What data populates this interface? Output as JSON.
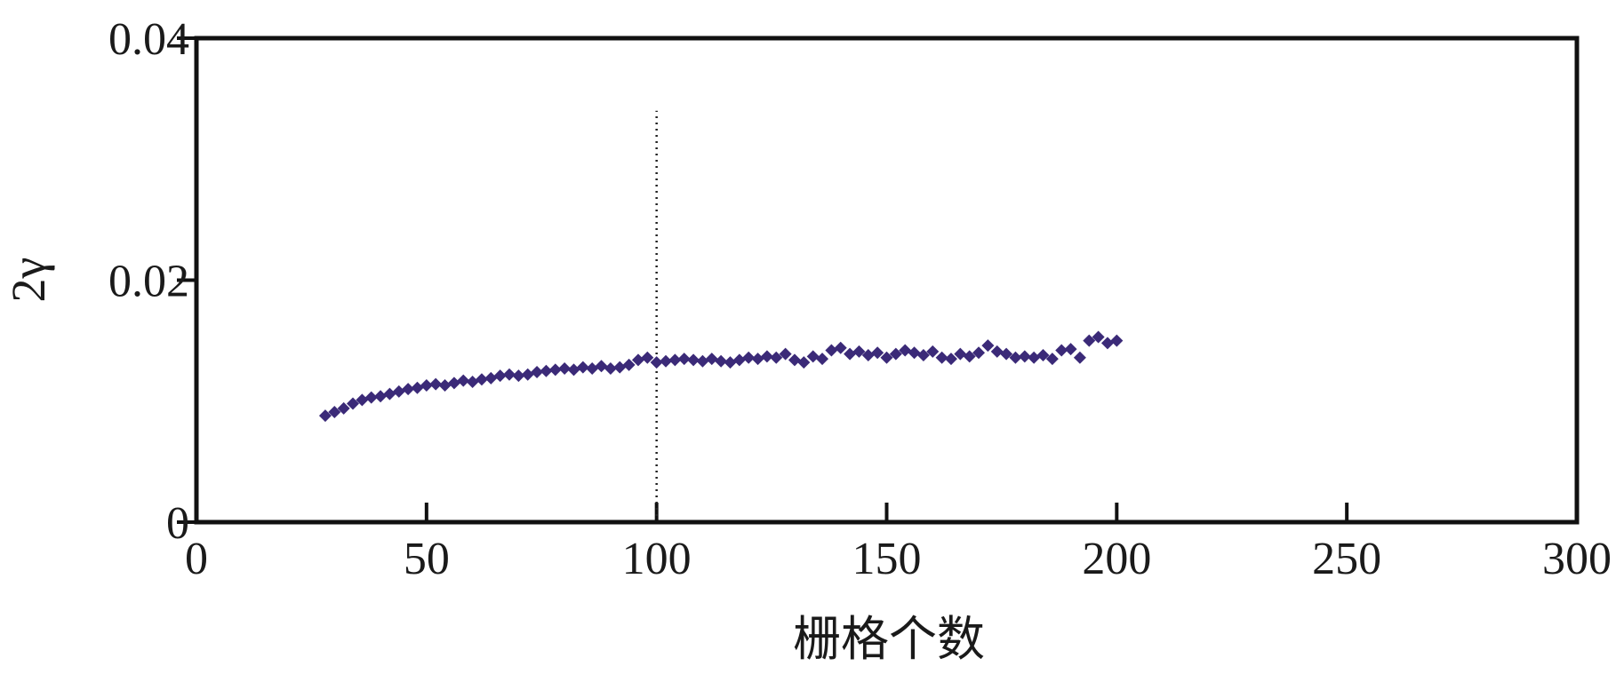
{
  "chart_data": {
    "type": "scatter",
    "x_label": "栅格个数",
    "y_label": "2γ",
    "x": [
      28,
      30,
      32,
      34,
      36,
      38,
      40,
      42,
      44,
      46,
      48,
      50,
      52,
      54,
      56,
      58,
      60,
      62,
      64,
      66,
      68,
      70,
      72,
      74,
      76,
      78,
      80,
      82,
      84,
      86,
      88,
      90,
      92,
      94,
      96,
      98,
      100,
      102,
      104,
      106,
      108,
      110,
      112,
      114,
      116,
      118,
      120,
      122,
      124,
      126,
      128,
      130,
      132,
      134,
      136,
      138,
      140,
      142,
      144,
      146,
      148,
      150,
      152,
      154,
      156,
      158,
      160,
      162,
      164,
      166,
      168,
      170,
      172,
      174,
      176,
      178,
      180,
      182,
      184,
      186,
      188,
      190,
      192,
      194,
      196,
      198,
      200
    ],
    "values": [
      0.0088,
      0.0091,
      0.0094,
      0.0098,
      0.0101,
      0.0103,
      0.0104,
      0.0106,
      0.0108,
      0.011,
      0.0111,
      0.0113,
      0.0114,
      0.0113,
      0.0115,
      0.0117,
      0.0116,
      0.0118,
      0.0119,
      0.0121,
      0.0122,
      0.0121,
      0.0122,
      0.0124,
      0.0125,
      0.0126,
      0.0127,
      0.0126,
      0.0128,
      0.0127,
      0.0129,
      0.0127,
      0.0128,
      0.013,
      0.0134,
      0.0136,
      0.0132,
      0.0133,
      0.0134,
      0.0135,
      0.0134,
      0.0133,
      0.0135,
      0.0133,
      0.0132,
      0.0134,
      0.0136,
      0.0135,
      0.0137,
      0.0136,
      0.0139,
      0.0134,
      0.0132,
      0.0137,
      0.0135,
      0.0142,
      0.0144,
      0.0139,
      0.0141,
      0.0138,
      0.014,
      0.0136,
      0.0139,
      0.0142,
      0.014,
      0.0138,
      0.0141,
      0.0136,
      0.0135,
      0.0139,
      0.0137,
      0.014,
      0.0146,
      0.0141,
      0.0139,
      0.0136,
      0.0137,
      0.0136,
      0.0138,
      0.0135,
      0.0142,
      0.0143,
      0.0136,
      0.015,
      0.0153,
      0.0148,
      0.015
    ],
    "color": "#3b2a78",
    "reference_line": {
      "x": 100,
      "ymax": 0.034
    },
    "xlim": [
      0,
      300
    ],
    "xticks": [
      0,
      50,
      100,
      150,
      200,
      250,
      300
    ],
    "ylim": [
      0,
      0.04
    ],
    "yticks": [
      0,
      0.02,
      0.04
    ]
  }
}
